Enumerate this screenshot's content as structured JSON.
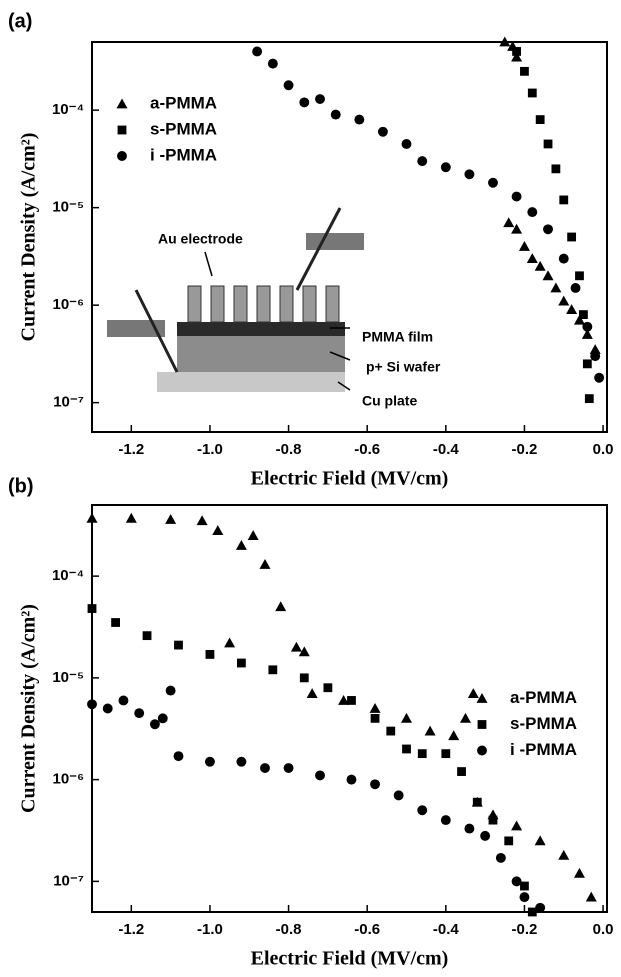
{
  "chart_data": [
    {
      "type": "scatter",
      "title": "(a)",
      "x_label": "Electric Field (MV/cm)",
      "y_label": "Current Density (A/cm²)",
      "log_y": true,
      "legend": "upper left",
      "xlim": [
        -1.3,
        0.01
      ],
      "ylim": [
        5e-08,
        0.0005
      ],
      "xticks": [
        -1.2,
        {
          "value": -1,
          "label": "-1.0"
        },
        -0.8,
        -0.6,
        -0.4,
        -0.2,
        {
          "value": 0,
          "label": "0.0"
        }
      ],
      "yticks": [
        {
          "value": 1e-07,
          "label": "10⁻⁷"
        },
        {
          "value": 1e-06,
          "label": "10⁻⁶"
        },
        {
          "value": 1e-05,
          "label": "10⁻⁵"
        },
        {
          "value": 0.0001,
          "label": "10⁻⁴"
        }
      ],
      "annotations": [
        "Au electrode",
        "PMMA film",
        "p+ Si wafer",
        "Cu plate"
      ],
      "series": [
        {
          "name": "a-PMMA",
          "marker": "triangle",
          "color": "#000000",
          "x": [
            -0.25,
            -0.23,
            -0.22,
            -0.24,
            -0.22,
            -0.2,
            -0.18,
            -0.16,
            -0.14,
            -0.12,
            -0.1,
            -0.08,
            -0.06,
            -0.04,
            -0.02
          ],
          "values": [
            0.0005,
            0.00045,
            0.00035,
            7e-06,
            6e-06,
            4e-06,
            3e-06,
            2.5e-06,
            2e-06,
            1.5e-06,
            1.1e-06,
            9e-07,
            7e-07,
            5e-07,
            3.5e-07
          ]
        },
        {
          "name": "s-PMMA",
          "marker": "square",
          "color": "#000000",
          "x": [
            -0.22,
            -0.2,
            -0.18,
            -0.16,
            -0.14,
            -0.12,
            -0.1,
            -0.08,
            -0.06,
            -0.05,
            -0.04,
            -0.035
          ],
          "values": [
            0.0004,
            0.00025,
            0.00015,
            8e-05,
            4.5e-05,
            2.5e-05,
            1.2e-05,
            5e-06,
            2e-06,
            8e-07,
            2.5e-07,
            1.1e-07
          ]
        },
        {
          "name": "i -PMMA",
          "marker": "circle",
          "color": "#000000",
          "x": [
            -0.88,
            -0.84,
            -0.8,
            -0.76,
            -0.72,
            -0.68,
            -0.62,
            -0.56,
            -0.5,
            -0.46,
            -0.4,
            -0.34,
            -0.28,
            -0.22,
            -0.18,
            -0.14,
            -0.1,
            -0.07,
            -0.04,
            -0.02,
            -0.01
          ],
          "values": [
            0.0004,
            0.0003,
            0.00018,
            0.00012,
            0.00013,
            9e-05,
            8e-05,
            6e-05,
            4.5e-05,
            3e-05,
            2.6e-05,
            2.2e-05,
            1.8e-05,
            1.3e-05,
            9e-06,
            6e-06,
            3e-06,
            1.5e-06,
            6e-07,
            3e-07,
            1.8e-07
          ]
        }
      ]
    },
    {
      "type": "scatter",
      "title": "(b)",
      "x_label": "Electric Field (MV/cm)",
      "y_label": "Current Density (A/cm²)",
      "log_y": true,
      "legend": "right",
      "xlim": [
        -1.3,
        0.01
      ],
      "ylim": [
        5e-08,
        0.0005
      ],
      "xticks": [
        -1.2,
        {
          "value": -1,
          "label": "-1.0"
        },
        -0.8,
        -0.6,
        -0.4,
        -0.2,
        {
          "value": 0,
          "label": "0.0"
        }
      ],
      "yticks": [
        {
          "value": 1e-07,
          "label": "10⁻⁷"
        },
        {
          "value": 1e-06,
          "label": "10⁻⁶"
        },
        {
          "value": 1e-05,
          "label": "10⁻⁵"
        },
        {
          "value": 0.0001,
          "label": "10⁻⁴"
        }
      ],
      "series": [
        {
          "name": "a-PMMA",
          "marker": "triangle",
          "color": "#000000",
          "x": [
            -1.3,
            -1.2,
            -1.1,
            -1.02,
            -0.98,
            -0.92,
            -0.89,
            -0.86,
            -0.82,
            -0.78,
            -0.76,
            -0.95,
            -0.74,
            -0.66,
            -0.58,
            -0.5,
            -0.44,
            -0.38,
            -0.35,
            -0.33,
            -0.32,
            -0.28,
            -0.22,
            -0.16,
            -0.1,
            -0.06,
            -0.03
          ],
          "values": [
            0.00037,
            0.00037,
            0.00036,
            0.00035,
            0.00028,
            0.0002,
            0.00025,
            0.00013,
            5e-05,
            2e-05,
            1.8e-05,
            2.2e-05,
            7e-06,
            6e-06,
            5e-06,
            4e-06,
            3e-06,
            2.7e-06,
            4e-06,
            7e-06,
            6e-07,
            4.5e-07,
            3.5e-07,
            2.5e-07,
            1.8e-07,
            1.2e-07,
            7e-08
          ]
        },
        {
          "name": "s-PMMA",
          "marker": "square",
          "color": "#000000",
          "x": [
            -1.3,
            -1.24,
            -1.16,
            -1.08,
            -1.0,
            -0.92,
            -0.84,
            -0.76,
            -0.7,
            -0.64,
            -0.58,
            -0.54,
            -0.5,
            -0.46,
            -0.4,
            -0.36,
            -0.32,
            -0.28,
            -0.24,
            -0.2,
            -0.18
          ],
          "values": [
            4.8e-05,
            3.5e-05,
            2.6e-05,
            2.1e-05,
            1.7e-05,
            1.4e-05,
            1.2e-05,
            1e-05,
            8e-06,
            6e-06,
            4e-06,
            3e-06,
            2e-06,
            1.8e-06,
            1.8e-06,
            1.2e-06,
            6e-07,
            4e-07,
            2.5e-07,
            9e-08,
            5e-08
          ]
        },
        {
          "name": "i -PMMA",
          "marker": "circle",
          "color": "#000000",
          "x": [
            -1.3,
            -1.26,
            -1.22,
            -1.18,
            -1.14,
            -1.12,
            -1.1,
            -1.08,
            -1.0,
            -0.92,
            -0.86,
            -0.8,
            -0.72,
            -0.64,
            -0.58,
            -0.52,
            -0.46,
            -0.4,
            -0.34,
            -0.3,
            -0.26,
            -0.22,
            -0.2,
            -0.16
          ],
          "values": [
            5.5e-06,
            5e-06,
            6e-06,
            4.5e-06,
            3.5e-06,
            4e-06,
            7.5e-06,
            1.7e-06,
            1.5e-06,
            1.5e-06,
            1.3e-06,
            1.3e-06,
            1.1e-06,
            1e-06,
            9e-07,
            7e-07,
            5e-07,
            4e-07,
            3.3e-07,
            2.8e-07,
            1.7e-07,
            1e-07,
            7e-08,
            5.5e-08
          ]
        }
      ]
    }
  ]
}
